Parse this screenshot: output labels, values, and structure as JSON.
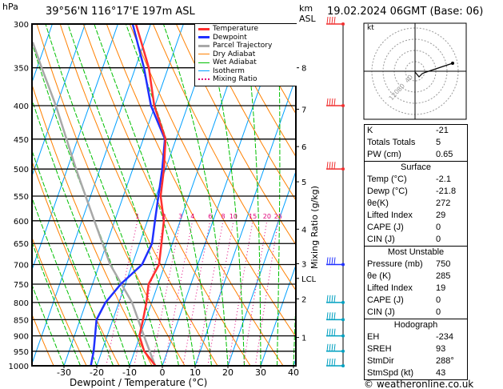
{
  "header": {
    "pressure_unit": "hPa",
    "location": "39°56'N  116°17'E  197m  ASL",
    "km_unit": "km",
    "asl": "ASL",
    "datetime": "19.02.2024  06GMT  (Base: 06)"
  },
  "chart_data": {
    "type": "skew-t",
    "xlabel": "Dewpoint / Temperature (°C)",
    "ylabel": "Mixing Ratio (g/kg)",
    "xlim": [
      -40,
      40
    ],
    "ylim": [
      1000,
      300
    ],
    "x_ticks": [
      -30,
      -20,
      -10,
      0,
      10,
      20,
      30,
      40
    ],
    "pressure_levels": [
      300,
      350,
      400,
      450,
      500,
      550,
      600,
      650,
      700,
      750,
      800,
      850,
      900,
      950,
      1000
    ],
    "legend": [
      "Temperature",
      "Dewpoint",
      "Parcel Trajectory",
      "Dry Adiabat",
      "Wet Adiabat",
      "Isotherm",
      "Mixing Ratio"
    ],
    "legend_placement": "top-right",
    "colors": {
      "temperature": "#ff3030",
      "dewpoint": "#2030ff",
      "parcel": "#a8a8a8",
      "dry": "#ff8000",
      "wet": "#00c000",
      "isotherm": "#00a0ff",
      "mixing": "#e0007a"
    },
    "mixing_ratio_labels": [
      1,
      2,
      3,
      4,
      6,
      8,
      10,
      15,
      20,
      25
    ],
    "km_labels": [
      {
        "label": "8",
        "p": 350
      },
      {
        "label": "7",
        "p": 405
      },
      {
        "label": "6",
        "p": 462
      },
      {
        "label": "5",
        "p": 523
      },
      {
        "label": "4",
        "p": 618
      },
      {
        "label": "3",
        "p": 698
      },
      {
        "label": "LCL",
        "p": 735
      },
      {
        "label": "2",
        "p": 790
      },
      {
        "label": "1",
        "p": 905
      }
    ],
    "temperature": [
      [
        1000,
        -2.1
      ],
      [
        950,
        -7.1
      ],
      [
        900,
        -10.2
      ],
      [
        850,
        -10.8
      ],
      [
        800,
        -11.6
      ],
      [
        750,
        -12.9
      ],
      [
        700,
        -11.8
      ],
      [
        650,
        -13.3
      ],
      [
        600,
        -15
      ],
      [
        550,
        -18.6
      ],
      [
        500,
        -20.5
      ],
      [
        450,
        -23.2
      ],
      [
        400,
        -30.2
      ],
      [
        350,
        -35.9
      ],
      [
        300,
        -44.5
      ]
    ],
    "dewpoint": [
      [
        1000,
        -21.8
      ],
      [
        950,
        -22.5
      ],
      [
        900,
        -23.7
      ],
      [
        850,
        -25
      ],
      [
        800,
        -24.1
      ],
      [
        750,
        -21.4
      ],
      [
        700,
        -17
      ],
      [
        650,
        -16.2
      ],
      [
        600,
        -17.7
      ],
      [
        550,
        -19.3
      ],
      [
        500,
        -21
      ],
      [
        450,
        -23.4
      ],
      [
        400,
        -31.2
      ],
      [
        350,
        -37.4
      ],
      [
        300,
        -45.5
      ]
    ],
    "parcel": [
      [
        1000,
        -2.2
      ],
      [
        900,
        -8.8
      ],
      [
        800,
        -16
      ],
      [
        700,
        -26.7
      ],
      [
        600,
        -36.2
      ],
      [
        500,
        -47.3
      ],
      [
        400,
        -60.2
      ],
      [
        350,
        -68.6
      ],
      [
        320,
        -74
      ]
    ]
  },
  "hodograph": {
    "unit": "kt",
    "rings": [
      "40",
      "80",
      "120"
    ]
  },
  "indices": {
    "rows": [
      {
        "k": "K",
        "v": "-21"
      },
      {
        "k": "Totals Totals",
        "v": "5"
      },
      {
        "k": "PW (cm)",
        "v": "0.65"
      }
    ]
  },
  "surface": {
    "title": "Surface",
    "rows": [
      {
        "k": "Temp (°C)",
        "v": "-2.1"
      },
      {
        "k": "Dewp (°C)",
        "v": "-21.8"
      },
      {
        "k": "θe(K)",
        "v": "272"
      },
      {
        "k": "Lifted Index",
        "v": "29"
      },
      {
        "k": "CAPE (J)",
        "v": "0"
      },
      {
        "k": "CIN (J)",
        "v": "0"
      }
    ]
  },
  "most_unstable": {
    "title": "Most Unstable",
    "rows": [
      {
        "k": "Pressure (mb)",
        "v": "750"
      },
      {
        "k": "θe (K)",
        "v": "285"
      },
      {
        "k": "Lifted Index",
        "v": "19"
      },
      {
        "k": "CAPE (J)",
        "v": "0"
      },
      {
        "k": "CIN (J)",
        "v": "0"
      }
    ]
  },
  "hodo_table": {
    "title": "Hodograph",
    "rows": [
      {
        "k": "EH",
        "v": "-234"
      },
      {
        "k": "SREH",
        "v": "93"
      },
      {
        "k": "StmDir",
        "v": "288°"
      },
      {
        "k": "StmSpd (kt)",
        "v": "43"
      }
    ]
  },
  "footer": {
    "copyright": "© weatheronline.co.uk"
  }
}
